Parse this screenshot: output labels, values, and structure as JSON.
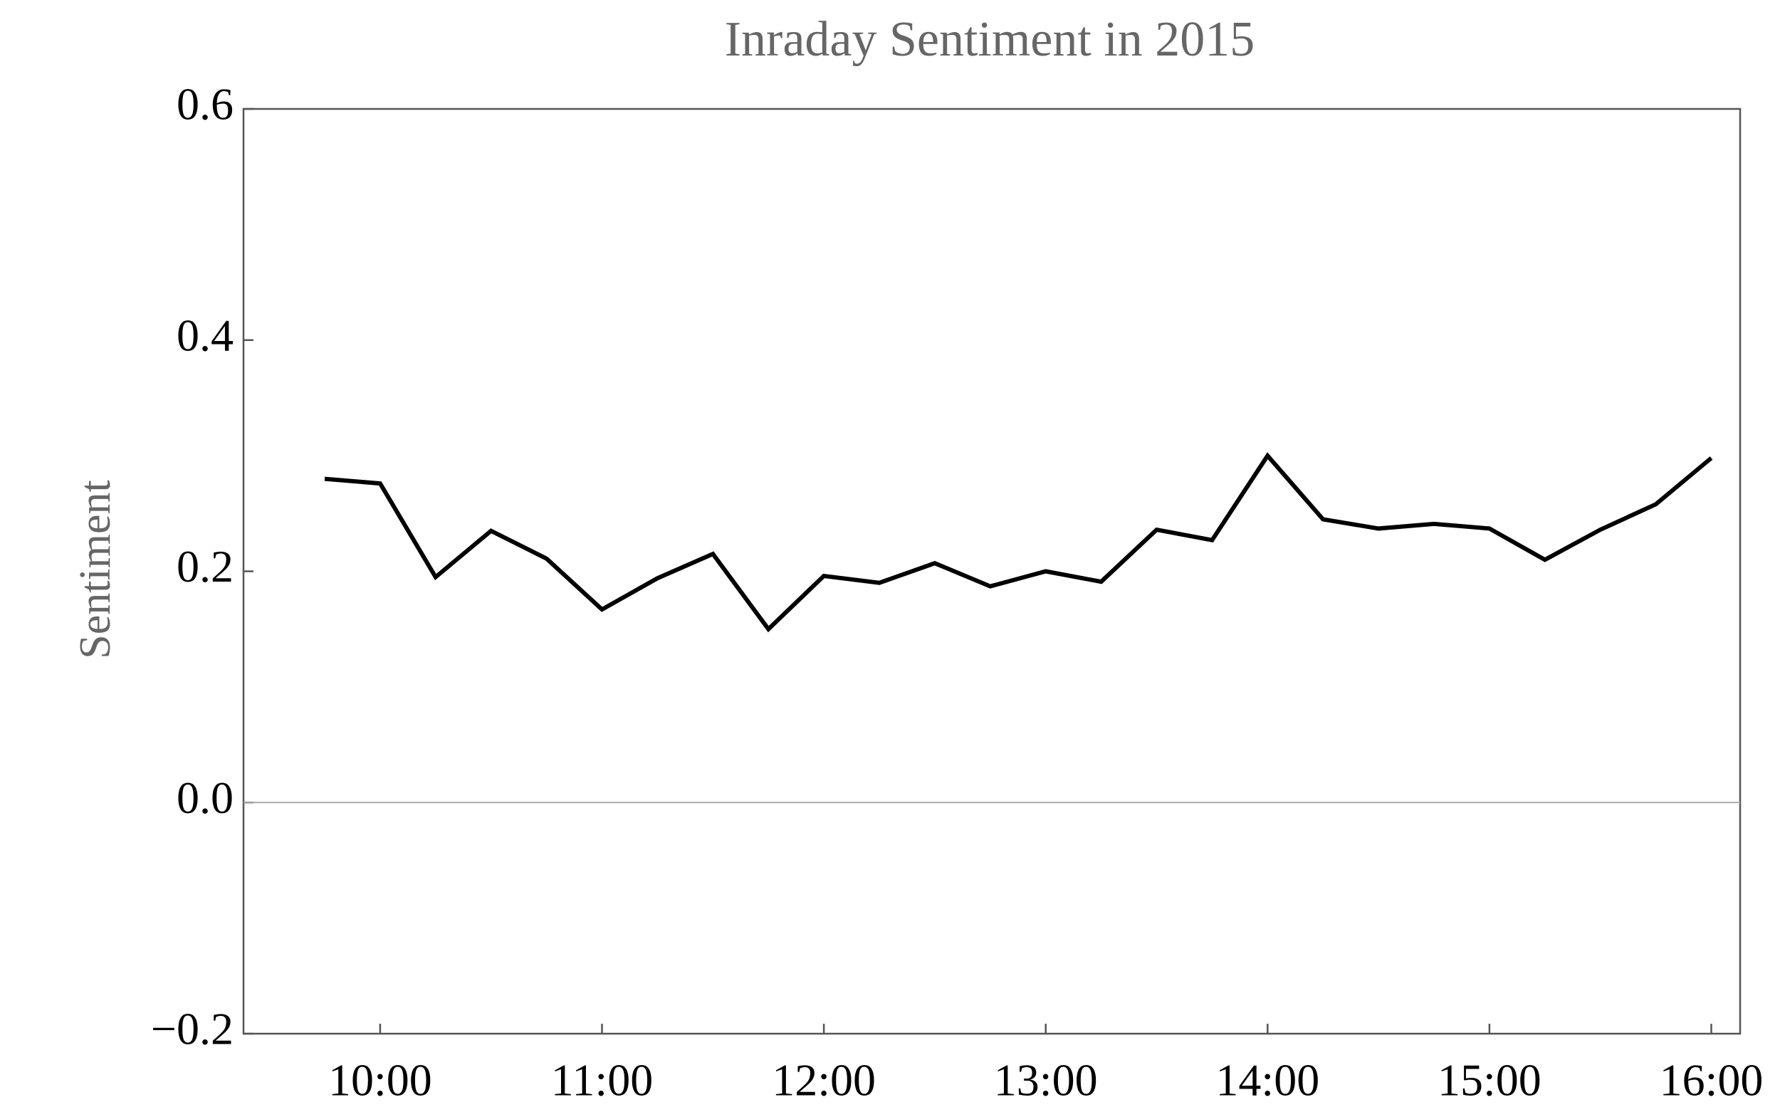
{
  "chart_data": {
    "type": "line",
    "title": "Inraday Sentiment in 2015",
    "ylabel": "Sentiment",
    "categories": [
      null,
      "10:00",
      null,
      null,
      null,
      "11:00",
      null,
      null,
      null,
      "12:00",
      null,
      null,
      null,
      "13:00",
      null,
      null,
      null,
      "14:00",
      null,
      null,
      null,
      "15:00",
      null,
      null,
      null,
      "16:00"
    ],
    "series": [
      {
        "name": "Sentiment",
        "color": "#000000",
        "values": [
          0.28,
          0.276,
          0.195,
          0.235,
          0.211,
          0.167,
          0.194,
          0.215,
          0.15,
          0.196,
          0.19,
          0.207,
          0.187,
          0.2,
          0.191,
          0.236,
          0.227,
          0.3,
          0.245,
          0.237,
          0.241,
          0.237,
          0.21,
          0.236,
          0.258,
          0.298
        ]
      }
    ],
    "ylim": [
      -0.2,
      0.6
    ],
    "yticks": [
      {
        "value": -0.2,
        "label": "−0.2"
      },
      {
        "value": 0,
        "label": "0.0"
      },
      0.2,
      0.4,
      0.6
    ],
    "reference_line": 0,
    "reference_color": "#aaaaaa",
    "grid": false
  }
}
